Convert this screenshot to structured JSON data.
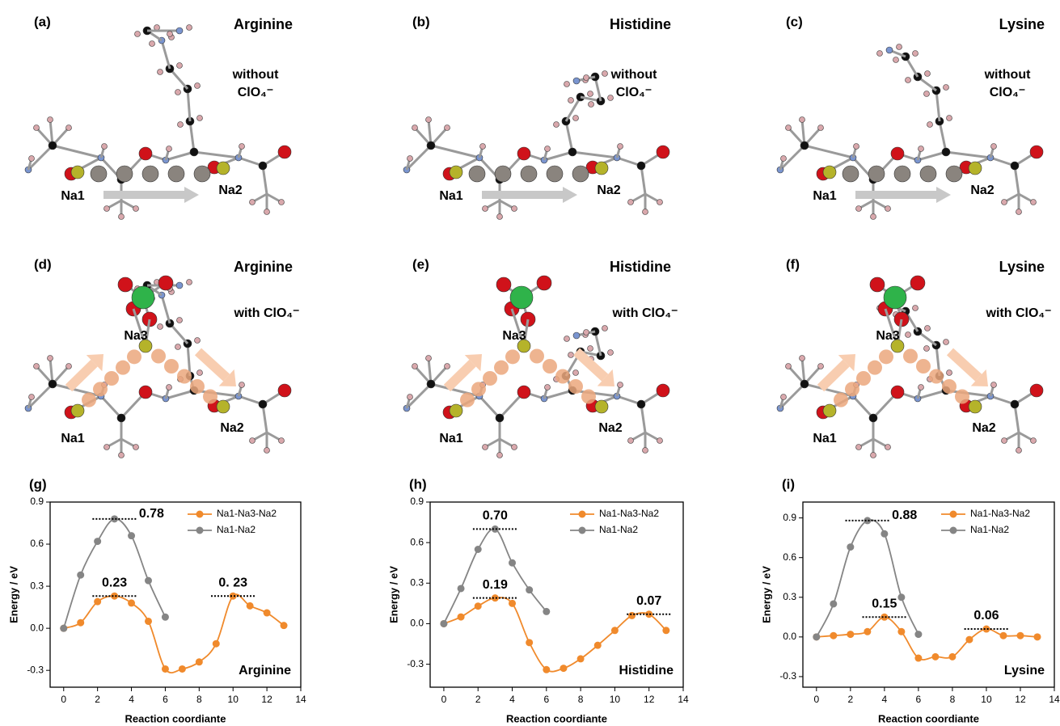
{
  "panels": [
    {
      "label": "(a)",
      "title": "Arginine",
      "note": [
        "without",
        "ClO₄⁻"
      ],
      "sites": [
        "Na1",
        "Na2"
      ]
    },
    {
      "label": "(b)",
      "title": "Histidine",
      "note": [
        "without",
        "ClO₄⁻"
      ],
      "sites": [
        "Na1",
        "Na2"
      ]
    },
    {
      "label": "(c)",
      "title": "Lysine",
      "note": [
        "without",
        "ClO₄⁻"
      ],
      "sites": [
        "Na1",
        "Na2"
      ]
    },
    {
      "label": "(d)",
      "title": "Arginine",
      "note": [
        "with ClO₄⁻"
      ],
      "sites": [
        "Na1",
        "Na2",
        "Na3"
      ]
    },
    {
      "label": "(e)",
      "title": "Histidine",
      "note": [
        "with ClO₄⁻"
      ],
      "sites": [
        "Na1",
        "Na2",
        "Na3"
      ]
    },
    {
      "label": "(f)",
      "title": "Lysine",
      "note": [
        "with ClO₄⁻"
      ],
      "sites": [
        "Na1",
        "Na2",
        "Na3"
      ]
    }
  ],
  "chart_data": [
    {
      "type": "line",
      "panel": "(g)",
      "xlabel": "Reaction coordiante",
      "ylabel": "Energy / eV",
      "xlim": [
        -0.8,
        14
      ],
      "ylim": [
        -0.42,
        0.9
      ],
      "xticks": [
        0,
        2,
        4,
        6,
        8,
        10,
        12,
        14
      ],
      "yticks": [
        -0.3,
        {
          "value": 0,
          "label": "0.0"
        },
        0.3,
        0.6,
        0.9
      ],
      "legend": "upper right",
      "series": [
        {
          "name": "Na1-Na3-Na2",
          "color": "#f08a2c",
          "x": [
            0,
            1,
            2,
            3,
            4,
            5,
            6,
            7,
            8,
            9,
            10,
            11,
            12,
            13
          ],
          "values": [
            0,
            0.04,
            0.19,
            0.23,
            0.18,
            0.05,
            -0.29,
            -0.29,
            -0.24,
            -0.11,
            0.23,
            0.16,
            0.11,
            0.02
          ]
        },
        {
          "name": "Na1-Na2",
          "color": "#858585",
          "x": [
            0,
            1,
            2,
            3,
            4,
            5,
            6
          ],
          "values": [
            0,
            0.38,
            0.62,
            0.78,
            0.66,
            0.34,
            0.08
          ]
        }
      ],
      "annotations": [
        "0.78",
        "0.23",
        "0. 23",
        "Arginine"
      ]
    },
    {
      "type": "line",
      "panel": "(h)",
      "xlabel": "Reaction coordiante",
      "ylabel": "Energy / eV",
      "xlim": [
        -0.8,
        14
      ],
      "ylim": [
        -0.47,
        0.9
      ],
      "xticks": [
        0,
        2,
        4,
        6,
        8,
        10,
        12,
        14
      ],
      "yticks": [
        -0.3,
        {
          "value": 0,
          "label": "0.0"
        },
        0.3,
        0.6,
        0.9
      ],
      "legend": "upper right",
      "series": [
        {
          "name": "Na1-Na3-Na2",
          "color": "#f08a2c",
          "x": [
            0,
            1,
            2,
            3,
            4,
            5,
            6,
            7,
            8,
            9,
            10,
            11,
            12,
            13
          ],
          "values": [
            0,
            0.05,
            0.13,
            0.19,
            0.15,
            -0.14,
            -0.34,
            -0.33,
            -0.26,
            -0.16,
            -0.05,
            0.06,
            0.07,
            -0.05
          ]
        },
        {
          "name": "Na1-Na2",
          "color": "#858585",
          "x": [
            0,
            1,
            2,
            3,
            4,
            5,
            6
          ],
          "values": [
            0,
            0.26,
            0.55,
            0.7,
            0.45,
            0.25,
            0.09
          ]
        }
      ],
      "annotations": [
        "0.70",
        "0.19",
        "0.07",
        "Histidine"
      ]
    },
    {
      "type": "line",
      "panel": "(i)",
      "xlabel": "Reaction coordiante",
      "ylabel": "Energy / eV",
      "xlim": [
        -0.8,
        14
      ],
      "ylim": [
        -0.38,
        1.02
      ],
      "xticks": [
        0,
        2,
        4,
        6,
        8,
        10,
        12,
        14
      ],
      "yticks": [
        -0.3,
        {
          "value": 0,
          "label": "0.0"
        },
        0.3,
        0.6,
        0.9
      ],
      "legend": "upper right",
      "series": [
        {
          "name": "Na1-Na3-Na2",
          "color": "#f08a2c",
          "x": [
            0,
            1,
            2,
            3,
            4,
            5,
            6,
            7,
            8,
            9,
            10,
            11,
            12,
            13
          ],
          "values": [
            0,
            0.01,
            0.02,
            0.04,
            0.15,
            0.04,
            -0.16,
            -0.15,
            -0.15,
            -0.02,
            0.06,
            0.01,
            0.01,
            0
          ]
        },
        {
          "name": "Na1-Na2",
          "color": "#858585",
          "x": [
            0,
            1,
            2,
            3,
            4,
            5,
            6
          ],
          "values": [
            0,
            0.25,
            0.68,
            0.88,
            0.78,
            0.3,
            0.02
          ]
        }
      ],
      "annotations": [
        "0.88",
        "0.15",
        "0.06",
        "Lysine"
      ]
    }
  ]
}
